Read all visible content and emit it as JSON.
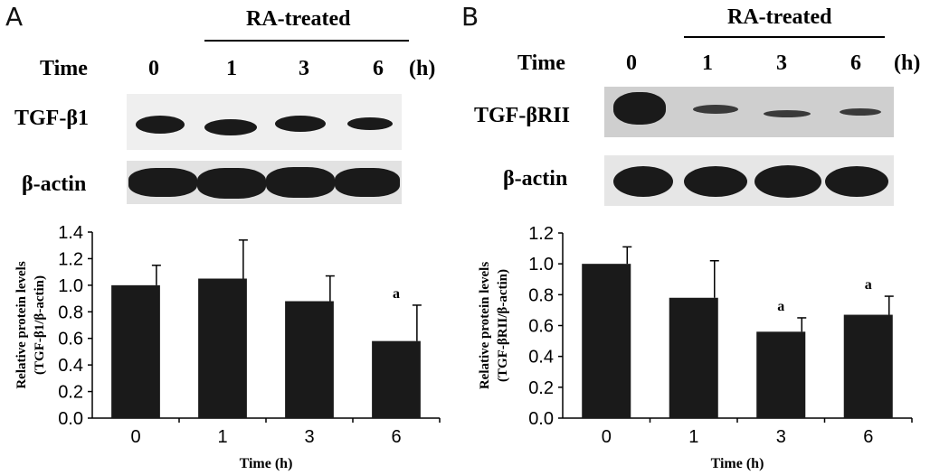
{
  "panels": [
    {
      "letter": "A",
      "treatment_label": "RA-treated",
      "time_label": "Time",
      "unit_label": "(h)",
      "lanes": [
        "0",
        "1",
        "3",
        "6"
      ],
      "blot_rows": [
        "TGF-β1",
        "β-actin"
      ]
    },
    {
      "letter": "B",
      "treatment_label": "RA-treated",
      "time_label": "Time",
      "unit_label": "(h)",
      "lanes": [
        "0",
        "1",
        "3",
        "6"
      ],
      "blot_rows": [
        "TGF-βRII",
        "β-actin"
      ]
    }
  ],
  "chart_data": [
    {
      "type": "bar",
      "categories": [
        "0",
        "1",
        "3",
        "6"
      ],
      "values": [
        1.0,
        1.05,
        0.88,
        0.58
      ],
      "errors": [
        0.15,
        0.29,
        0.19,
        0.27
      ],
      "annotations": [
        "",
        "",
        "",
        "a"
      ],
      "ylabel_line1": "Relative protein levels",
      "ylabel_line2": "(TGF-β1/β-actin)",
      "xlabel": "Time (h)",
      "ylim": [
        0,
        1.4
      ],
      "yticks": [
        "0.0",
        "0.2",
        "0.4",
        "0.6",
        "0.8",
        "1.0",
        "1.2",
        "1.4"
      ],
      "bar_color": "#1a1a1a"
    },
    {
      "type": "bar",
      "categories": [
        "0",
        "1",
        "3",
        "6"
      ],
      "values": [
        1.0,
        0.78,
        0.56,
        0.67
      ],
      "errors": [
        0.11,
        0.24,
        0.09,
        0.12
      ],
      "annotations": [
        "",
        "",
        "a",
        "a"
      ],
      "ylabel_line1": "Relative protein levels",
      "ylabel_line2": "(TGF-βRII/β-actin)",
      "xlabel": "Time (h)",
      "ylim": [
        0,
        1.2
      ],
      "yticks": [
        "0.0",
        "0.2",
        "0.4",
        "0.6",
        "0.8",
        "1.0",
        "1.2"
      ],
      "bar_color": "#1a1a1a"
    }
  ]
}
